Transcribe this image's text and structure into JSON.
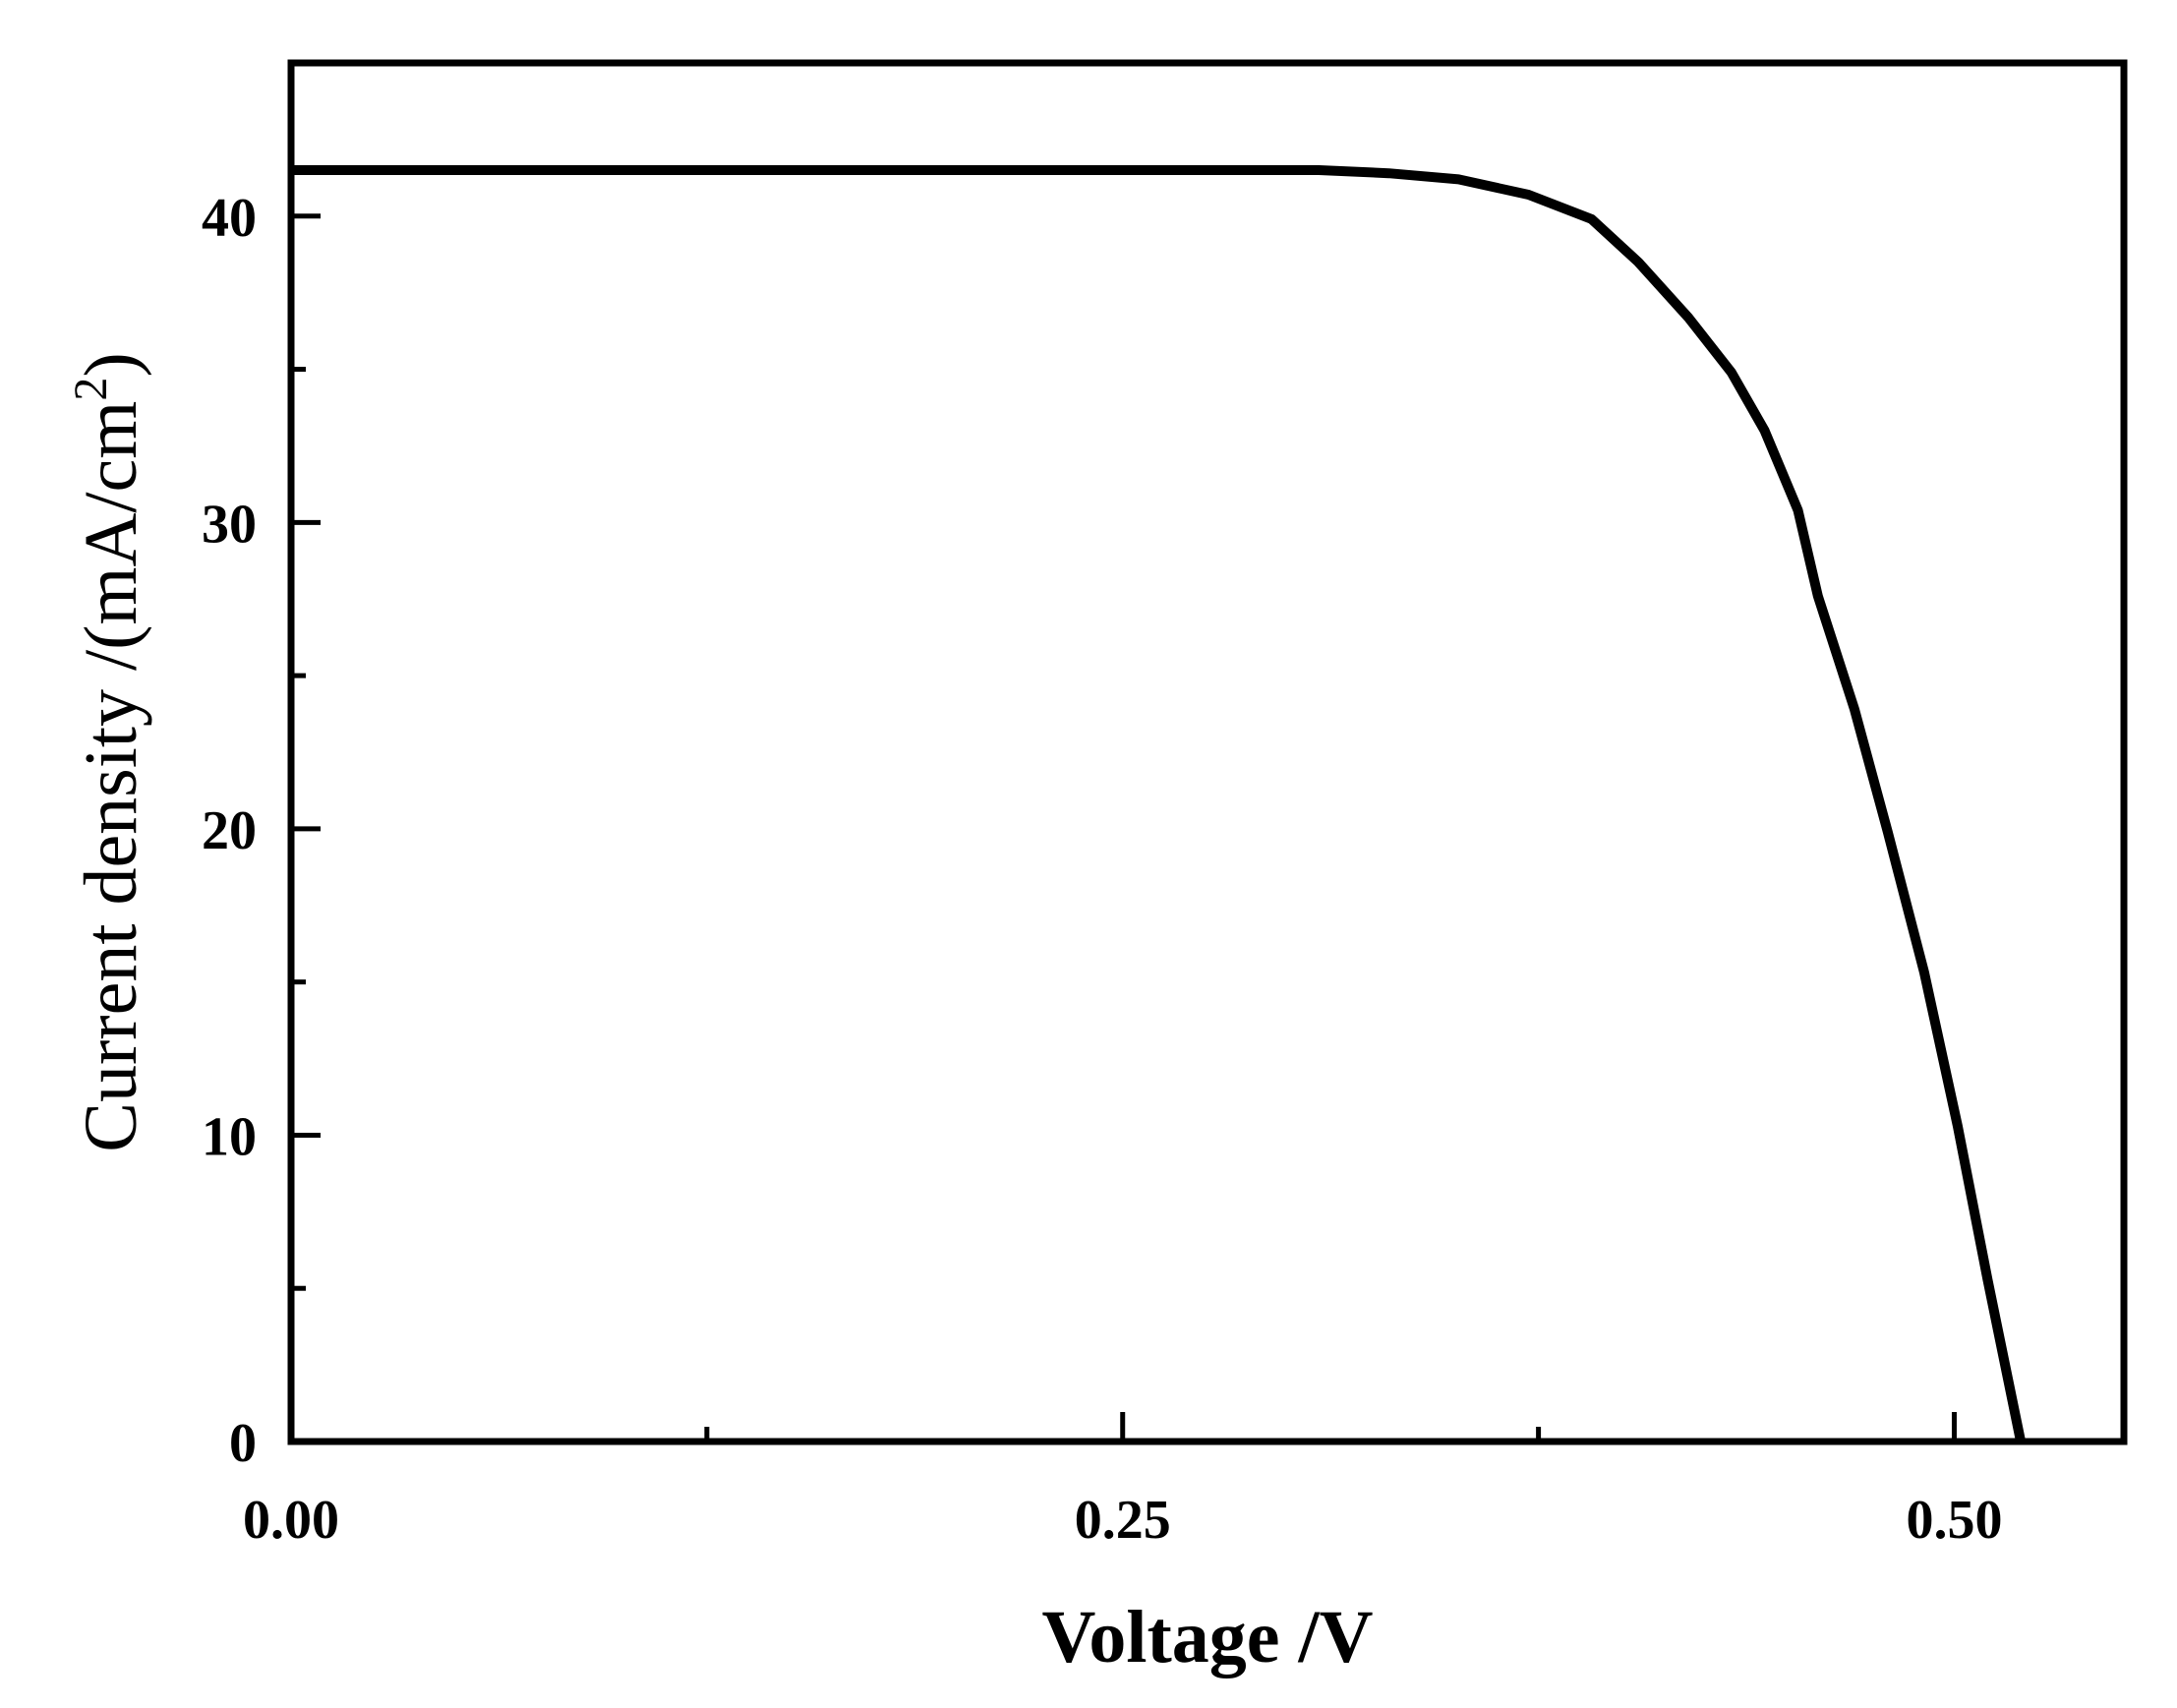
{
  "chart_data": {
    "type": "line",
    "title": "",
    "xlabel": "Voltage /V",
    "ylabel": "Current density /(mA/cm",
    "ylabel_superscript": "2",
    "ylabel_suffix": ")",
    "xlim": [
      0,
      0.551
    ],
    "ylim": [
      0,
      45
    ],
    "x_ticks": [
      0,
      0.25,
      0.5
    ],
    "x_tick_labels": [
      "0.00",
      "0.25",
      "0.50"
    ],
    "x_minor_ticks": [
      0.125,
      0.375
    ],
    "y_ticks": [
      0,
      10,
      20,
      30,
      40
    ],
    "y_tick_labels": [
      "0",
      "10",
      "20",
      "30",
      "40"
    ],
    "y_minor_ticks": [
      5,
      15,
      25,
      35
    ],
    "grid": false,
    "line_color": "#000000",
    "series": [
      {
        "x": [
          0,
          0.1,
          0.2,
          0.309,
          0.33,
          0.351,
          0.372,
          0.391,
          0.405,
          0.42,
          0.433,
          0.443,
          0.453,
          0.459,
          0.47,
          0.48,
          0.491,
          0.501,
          0.51,
          0.52
        ],
        "y": [
          41.5,
          41.5,
          41.5,
          41.5,
          41.4,
          41.2,
          40.7,
          39.9,
          38.5,
          36.7,
          34.9,
          33.0,
          30.4,
          27.6,
          23.9,
          19.9,
          15.3,
          10.3,
          5.3,
          0
        ]
      }
    ]
  }
}
